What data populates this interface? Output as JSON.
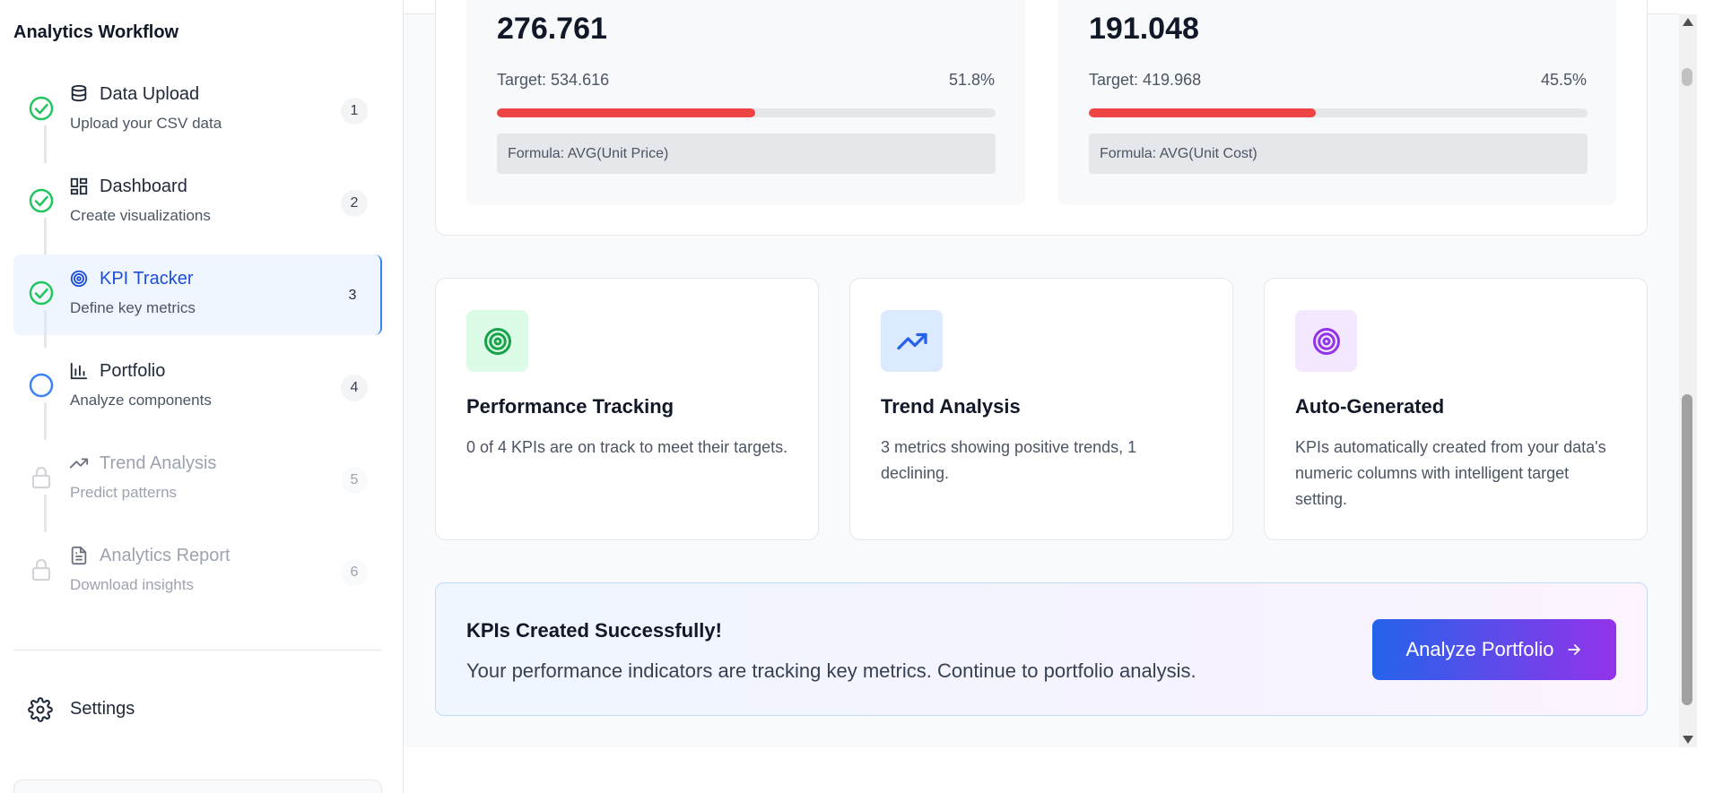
{
  "app": {
    "title": "Analytics Workflow"
  },
  "sidebar": {
    "steps": [
      {
        "title": "Data Upload",
        "subtitle": "Upload your CSV data",
        "number": "1",
        "status": "completed",
        "icon": "database-icon"
      },
      {
        "title": "Dashboard",
        "subtitle": "Create visualizations",
        "number": "2",
        "status": "completed",
        "icon": "grid-icon"
      },
      {
        "title": "KPI Tracker",
        "subtitle": "Define key metrics",
        "number": "3",
        "status": "completed-active",
        "icon": "target-icon"
      },
      {
        "title": "Portfolio",
        "subtitle": "Analyze components",
        "number": "4",
        "status": "current",
        "icon": "bar-chart-icon"
      },
      {
        "title": "Trend Analysis",
        "subtitle": "Predict patterns",
        "number": "5",
        "status": "locked",
        "icon": "trending-up-icon"
      },
      {
        "title": "Analytics Report",
        "subtitle": "Download insights",
        "number": "6",
        "status": "locked",
        "icon": "document-icon"
      }
    ],
    "settings_label": "Settings"
  },
  "kpis": [
    {
      "value": "276.761",
      "target_text": "Target: 534.616",
      "percent_text": "51.8%",
      "progress": 0.518,
      "formula": "Formula: AVG(Unit Price)"
    },
    {
      "value": "191.048",
      "target_text": "Target: 419.968",
      "percent_text": "45.5%",
      "progress": 0.455,
      "formula": "Formula: AVG(Unit Cost)"
    }
  ],
  "features": [
    {
      "title": "Performance Tracking",
      "description": "0 of 4 KPIs are on track to meet their targets.",
      "icon": "target-icon",
      "icon_color": "#16a34a",
      "icon_bg": "#dcfce7"
    },
    {
      "title": "Trend Analysis",
      "description": "3 metrics showing positive trends, 1 declining.",
      "icon": "trending-up-icon",
      "icon_color": "#2563eb",
      "icon_bg": "#dbeafe"
    },
    {
      "title": "Auto-Generated",
      "description": "KPIs automatically created from your data's numeric columns with intelligent target setting.",
      "icon": "target-icon",
      "icon_color": "#9333ea",
      "icon_bg": "#f3e8ff"
    }
  ],
  "success": {
    "title": "KPIs Created Successfully!",
    "description": "Your performance indicators are tracking key metrics. Continue to portfolio analysis.",
    "button_label": "Analyze Portfolio"
  },
  "colors": {
    "completed": "#22c55e",
    "current": "#3b82f6",
    "locked": "#d1d5db",
    "progress_fill": "#ef4444",
    "accent": "#2563eb"
  }
}
